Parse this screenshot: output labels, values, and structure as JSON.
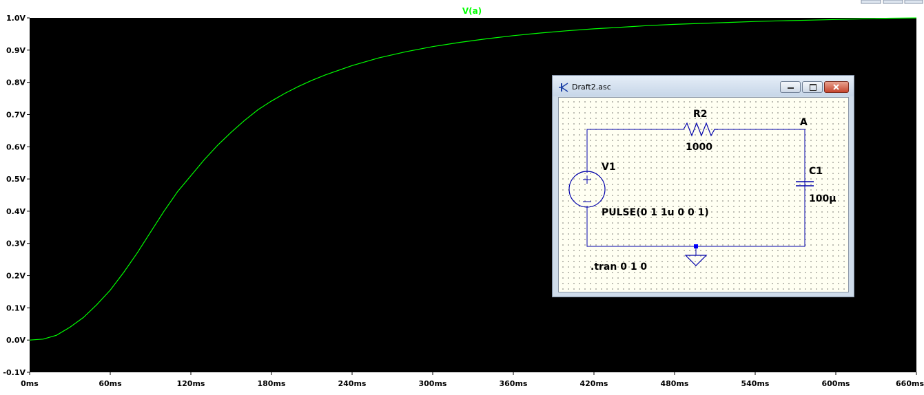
{
  "plot": {
    "trace_label": "V(a)",
    "trace_color": "#00ff00",
    "background_color": "#000000",
    "y_ticks": [
      "1.0V",
      "0.9V",
      "0.8V",
      "0.7V",
      "0.6V",
      "0.5V",
      "0.4V",
      "0.3V",
      "0.2V",
      "0.1V",
      "0.0V",
      "-0.1V"
    ],
    "x_ticks": [
      "0ms",
      "60ms",
      "120ms",
      "180ms",
      "240ms",
      "300ms",
      "360ms",
      "420ms",
      "480ms",
      "540ms",
      "600ms",
      "660ms"
    ]
  },
  "chart_data": {
    "type": "line",
    "title": "V(a)",
    "xlabel": "",
    "ylabel": "",
    "xlim": [
      0,
      660
    ],
    "ylim": [
      -0.1,
      1.0
    ],
    "grid": false,
    "series": [
      {
        "name": "V(a)",
        "x": [
          0,
          10,
          20,
          30,
          40,
          50,
          60,
          70,
          80,
          90,
          100,
          110,
          120,
          130,
          140,
          150,
          160,
          170,
          180,
          190,
          200,
          210,
          220,
          240,
          260,
          280,
          300,
          320,
          340,
          360,
          380,
          400,
          420,
          440,
          460,
          480,
          500,
          520,
          540,
          560,
          580,
          600,
          620,
          640,
          660
        ],
        "values": [
          0.0,
          0.003,
          0.015,
          0.04,
          0.07,
          0.11,
          0.155,
          0.21,
          0.27,
          0.335,
          0.4,
          0.46,
          0.51,
          0.56,
          0.605,
          0.645,
          0.682,
          0.715,
          0.742,
          0.766,
          0.787,
          0.806,
          0.823,
          0.852,
          0.876,
          0.895,
          0.911,
          0.924,
          0.935,
          0.945,
          0.953,
          0.96,
          0.966,
          0.971,
          0.976,
          0.98,
          0.983,
          0.986,
          0.989,
          0.991,
          0.993,
          0.995,
          0.997,
          0.999,
          1.0
        ]
      }
    ]
  },
  "schematic": {
    "title": "Draft2.asc",
    "r2_name": "R2",
    "r2_value": "1000",
    "node_label": "A",
    "v1_name": "V1",
    "v1_value": "PULSE(0 1 1u 0 0 1)",
    "c1_name": "C1",
    "c1_value": "100µ",
    "directive": ".tran 0 1 0"
  }
}
